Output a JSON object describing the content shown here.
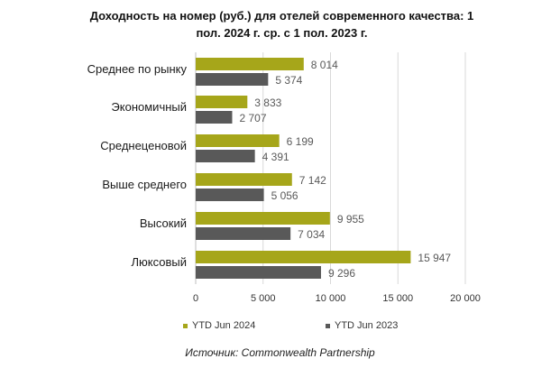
{
  "colors": {
    "series_2024": "#a6a61a",
    "series_2023": "#595959",
    "grid": "#d9d9d9",
    "axis": "#bfbfbf",
    "text": "#1a1a1a",
    "value_text": "#595959"
  },
  "chart_data": {
    "type": "bar",
    "orientation": "horizontal",
    "title_line1": "Доходность на номер (руб.) для отелей современного качества: 1",
    "title_line2": "пол. 2024 г. ср. с 1 пол. 2023 г.",
    "categories": [
      "Среднее по рынку",
      "Экономичный",
      "Среднеценовой",
      "Выше среднего",
      "Высокий",
      "Люксовый"
    ],
    "series": [
      {
        "name": "YTD Jun 2024",
        "values": [
          8014,
          3833,
          6199,
          7142,
          9955,
          15947
        ],
        "labels": [
          "8 014",
          "3 833",
          "6 199",
          "7 142",
          "9 955",
          "15 947"
        ]
      },
      {
        "name": "YTD Jun 2023",
        "values": [
          5374,
          2707,
          4391,
          5056,
          7034,
          9296
        ],
        "labels": [
          "5 374",
          "2 707",
          "4 391",
          "5 056",
          "7 034",
          "9 296"
        ]
      }
    ],
    "xlim": [
      0,
      20000
    ],
    "xticks": [
      0,
      5000,
      10000,
      15000,
      20000
    ],
    "xtick_labels": [
      "0",
      "5 000",
      "10 000",
      "15 000",
      "20 000"
    ],
    "grid": true,
    "legend_position": "bottom",
    "source": "Источник: Commonwealth Partnership"
  }
}
